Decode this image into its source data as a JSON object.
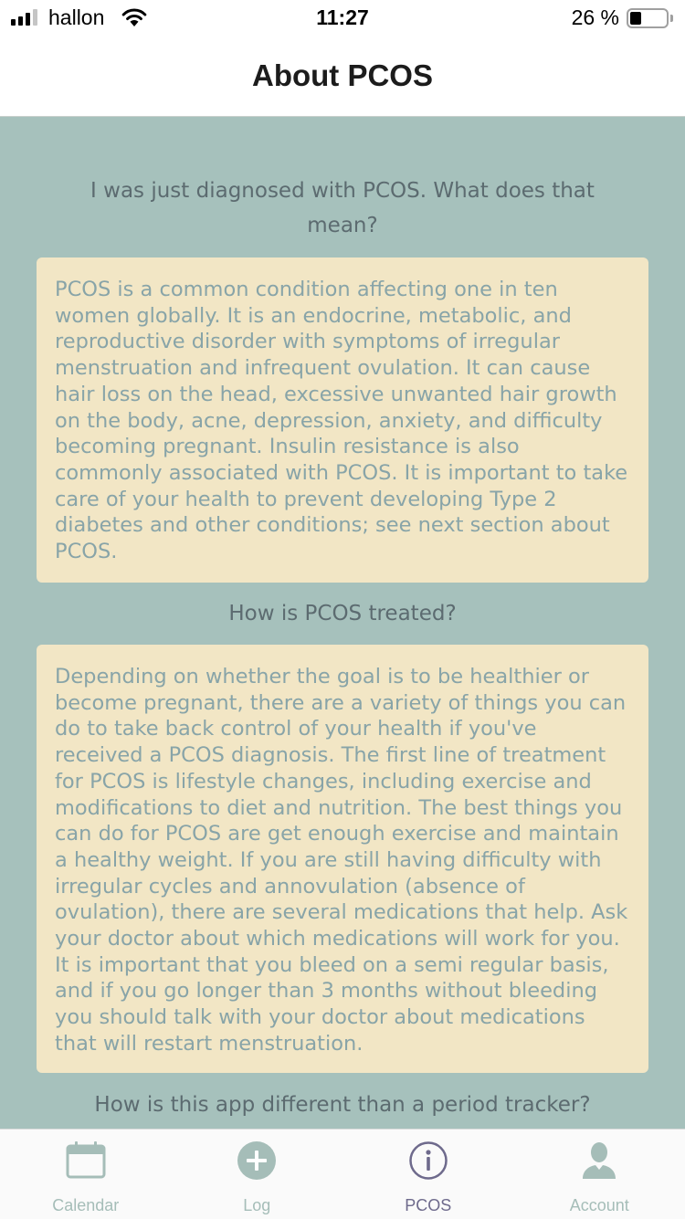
{
  "status_bar": {
    "carrier": "hallon",
    "time": "11:27",
    "battery_percent": "26 %",
    "battery_level": 0.26
  },
  "header": {
    "title": "About PCOS"
  },
  "sections": [
    {
      "question": "I was just diagnosed with PCOS. What does that mean?",
      "answer": "PCOS is a common condition affecting one in ten women globally. It is an endocrine, metabolic, and reproductive disorder with symptoms of irregular menstruation and infrequent ovulation. It can cause hair loss on the head, excessive unwanted hair growth on the body, acne, depression, anxiety, and difficulty becoming pregnant. Insulin resistance is also commonly associated with PCOS. It is important to take care of your health to prevent developing Type 2 diabetes and other conditions; see next section about PCOS."
    },
    {
      "question": "How is PCOS treated?",
      "answer": "Depending on whether the goal is to be healthier or become pregnant, there are a variety of things you can do to take back control of your health if you've received a PCOS diagnosis. The first line of treatment for PCOS is lifestyle changes, including exercise and modifications to diet and nutrition. The best things you can do for PCOS are get enough exercise and maintain a healthy weight. If you are still having difficulty with irregular cycles and annovulation (absence of ovulation), there are several medications that help. Ask your doctor about which medications will work for you. It is important that you bleed on a semi regular basis, and if you go longer than 3 months without bleeding you should talk with your doctor about medications that will restart menstruation."
    },
    {
      "question": "How is this app different than a period tracker?"
    }
  ],
  "tabs": [
    {
      "label": "Calendar",
      "icon": "calendar-icon",
      "active": false
    },
    {
      "label": "Log",
      "icon": "plus-circle-icon",
      "active": false
    },
    {
      "label": "PCOS",
      "icon": "info-icon",
      "active": true
    },
    {
      "label": "Account",
      "icon": "person-icon",
      "active": false
    }
  ],
  "colors": {
    "content_background": "#a6c1bc",
    "card_background": "#f2e6c5",
    "card_text": "#88a4a8",
    "question_text": "#5c6b70",
    "tab_inactive": "#a5bdb8",
    "tab_active": "#6e6a8c"
  }
}
